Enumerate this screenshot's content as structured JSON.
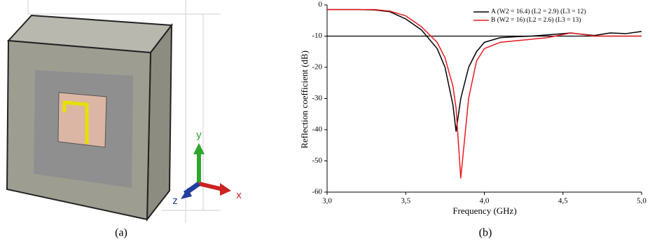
{
  "panel_labels": [
    "(a)",
    "(b)"
  ],
  "view_axes": {
    "x": "x",
    "y": "y",
    "z": "z"
  },
  "chart_data": {
    "type": "line",
    "x_label": "Frequency (GHz)",
    "y_label": "Reflection coefficient (dB)",
    "x": [
      3.0,
      3.1,
      3.2,
      3.3,
      3.4,
      3.5,
      3.6,
      3.7,
      3.75,
      3.8,
      3.82,
      3.85,
      3.9,
      3.95,
      4.0,
      4.1,
      4.2,
      4.3,
      4.4,
      4.5,
      4.55,
      4.6,
      4.7,
      4.8,
      4.9,
      5.0
    ],
    "series": [
      {
        "name": "A (W2 = 16.4) (L2 = 2.9) (L3 = 12)",
        "color": "#000000",
        "values": [
          -1.5,
          -1.5,
          -1.5,
          -1.6,
          -2.2,
          -4.5,
          -8,
          -14,
          -20,
          -32,
          -40.5,
          -30,
          -20,
          -15,
          -12,
          -10.5,
          -10.2,
          -10,
          -9.6,
          -9.2,
          -9,
          -9.3,
          -9.8,
          -9,
          -9.2,
          -8.5
        ]
      },
      {
        "name": "B (W2 = 16) (L2 = 2.6) (L3 = 13)",
        "color": "#e8191f",
        "values": [
          -1.5,
          -1.5,
          -1.5,
          -1.5,
          -2,
          -3.5,
          -7,
          -12,
          -17,
          -26,
          -33,
          -55.5,
          -30,
          -18,
          -14,
          -12,
          -11.5,
          -11,
          -10.5,
          -9.5,
          -9,
          -9.3,
          -10,
          -10,
          -10,
          -10
        ]
      }
    ],
    "reference_line": -10,
    "xlim": [
      3.0,
      5.0
    ],
    "xticks": [
      {
        "value": 3.0,
        "label": "3,0"
      },
      {
        "value": 3.5,
        "label": "3,5"
      },
      {
        "value": 4.0,
        "label": "4,0"
      },
      {
        "value": 4.5,
        "label": "4,5"
      },
      {
        "value": 5.0,
        "label": "5,0"
      }
    ],
    "ylim": [
      -60,
      0
    ],
    "yticks": [
      0,
      -10,
      -20,
      -30,
      -40,
      -50,
      -60
    ],
    "legend": "top-right"
  }
}
